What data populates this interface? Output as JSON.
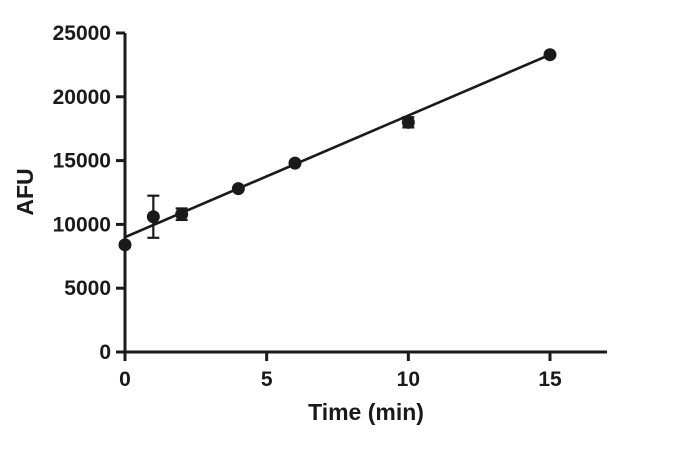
{
  "chart_data": {
    "type": "scatter",
    "title": "",
    "xlabel": "Time (min)",
    "ylabel": "AFU",
    "xlim": [
      0,
      17
    ],
    "ylim": [
      0,
      25000
    ],
    "x_ticks": [
      0,
      5,
      10,
      15
    ],
    "y_ticks": [
      0,
      5000,
      10000,
      15000,
      20000,
      25000
    ],
    "x_tick_labels": [
      "0",
      "5",
      "10",
      "15"
    ],
    "y_tick_labels": [
      "0",
      "5000",
      "10000",
      "15000",
      "20000",
      "25000"
    ],
    "grid": false,
    "legend": "none",
    "series": [
      {
        "points": [
          {
            "x": 0,
            "y": 8400,
            "error": 0
          },
          {
            "x": 1,
            "y": 10600,
            "error": 1650
          },
          {
            "x": 2,
            "y": 10800,
            "error": 450
          },
          {
            "x": 4,
            "y": 12800,
            "error": 0
          },
          {
            "x": 6,
            "y": 14800,
            "error": 0
          },
          {
            "x": 10,
            "y": 18000,
            "error": 400
          },
          {
            "x": 15,
            "y": 23300,
            "error": 0
          }
        ]
      }
    ],
    "fit_line": {
      "type": "linear",
      "x": [
        0,
        15
      ],
      "y": [
        9000,
        23300
      ]
    },
    "colors": {
      "marker": "#1a1a1a",
      "line": "#1a1a1a",
      "axis": "#1a1a1a"
    }
  }
}
